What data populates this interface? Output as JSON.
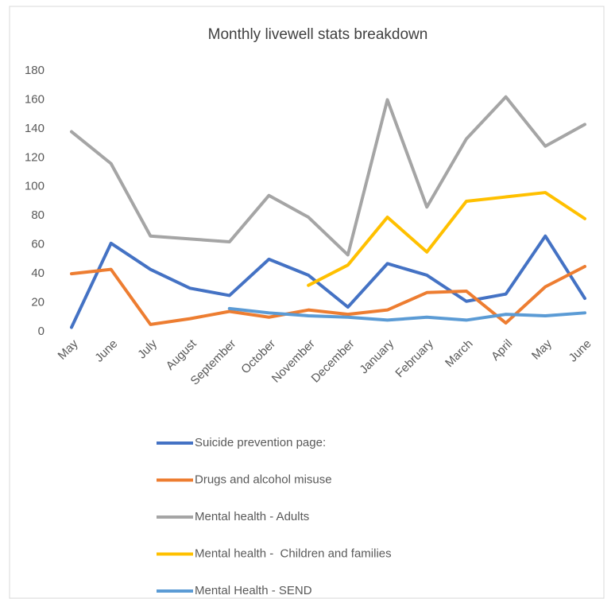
{
  "chart_data": {
    "type": "line",
    "title": "Monthly livewell stats breakdown",
    "categories": [
      "May",
      "June",
      "July",
      "August",
      "September",
      "October",
      "November",
      "December",
      "January",
      "February",
      "March",
      "April",
      "May",
      "June"
    ],
    "series": [
      {
        "name": "Suicide prevention page:",
        "color": "#4472c4",
        "values": [
          3,
          61,
          43,
          30,
          25,
          50,
          39,
          17,
          47,
          39,
          21,
          26,
          66,
          23
        ]
      },
      {
        "name": "Drugs and alcohol misuse",
        "color": "#ed7d31",
        "values": [
          40,
          43,
          5,
          9,
          14,
          10,
          15,
          12,
          15,
          27,
          28,
          6,
          31,
          45
        ]
      },
      {
        "name": "Mental health - Adults",
        "color": "#a5a5a5",
        "values": [
          138,
          116,
          66,
          64,
          62,
          94,
          79,
          53,
          160,
          86,
          133,
          162,
          128,
          143
        ]
      },
      {
        "name": "Mental health -  Children and families",
        "color": "#ffc000",
        "values": [
          null,
          null,
          null,
          null,
          null,
          null,
          32,
          46,
          79,
          55,
          90,
          93,
          96,
          78
        ]
      },
      {
        "name": "Mental Health - SEND",
        "color": "#5b9bd5",
        "values": [
          null,
          null,
          null,
          null,
          16,
          13,
          11,
          10,
          8,
          10,
          8,
          12,
          11,
          13
        ]
      }
    ],
    "ylim": [
      0,
      180
    ],
    "yticks": [
      0,
      20,
      40,
      60,
      80,
      100,
      120,
      140,
      160,
      180
    ],
    "grid": false,
    "legend": "bottom"
  }
}
